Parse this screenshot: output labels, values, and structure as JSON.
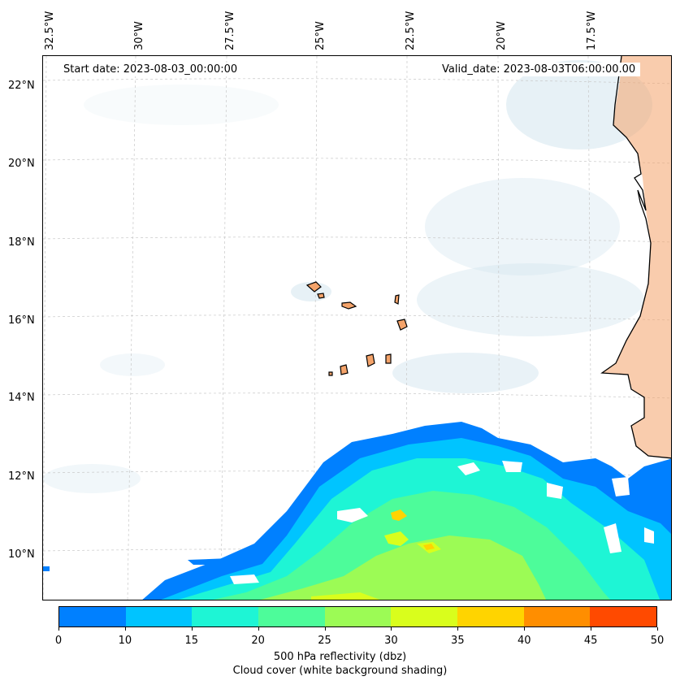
{
  "header": {
    "start_date": "Start date: 2023-08-03_00:00:00",
    "valid_date": "Valid_date: 2023-08-03T06:00:00.00"
  },
  "axes": {
    "lon_labels": [
      "32.5°W",
      "30°W",
      "27.5°W",
      "25°W",
      "22.5°W",
      "20°W",
      "17.5°W"
    ],
    "lat_labels": [
      "22°N",
      "20°N",
      "18°N",
      "16°N",
      "14°N",
      "12°N",
      "10°N"
    ]
  },
  "colorbar": {
    "ticks": [
      "0",
      "5",
      "10",
      "15",
      "20",
      "25",
      "30",
      "35",
      "40",
      "45",
      "50"
    ],
    "tick_labels_shown": [
      "0",
      "10",
      "15",
      "20",
      "25",
      "30",
      "35",
      "40",
      "45",
      "50"
    ],
    "colors": [
      "#0080ff",
      "#00c4ff",
      "#1ef5d5",
      "#4dfc9a",
      "#9cfb55",
      "#d9fe1c",
      "#ffd400",
      "#ff8e00",
      "#ff4a00"
    ],
    "title_line1": "500 hPa reflectivity (dbz)",
    "title_line2": "Cloud cover (white background shading)"
  },
  "colors": {
    "land": "#f4a36a",
    "cloud": "#cfe3ee",
    "coast": "#000000"
  }
}
